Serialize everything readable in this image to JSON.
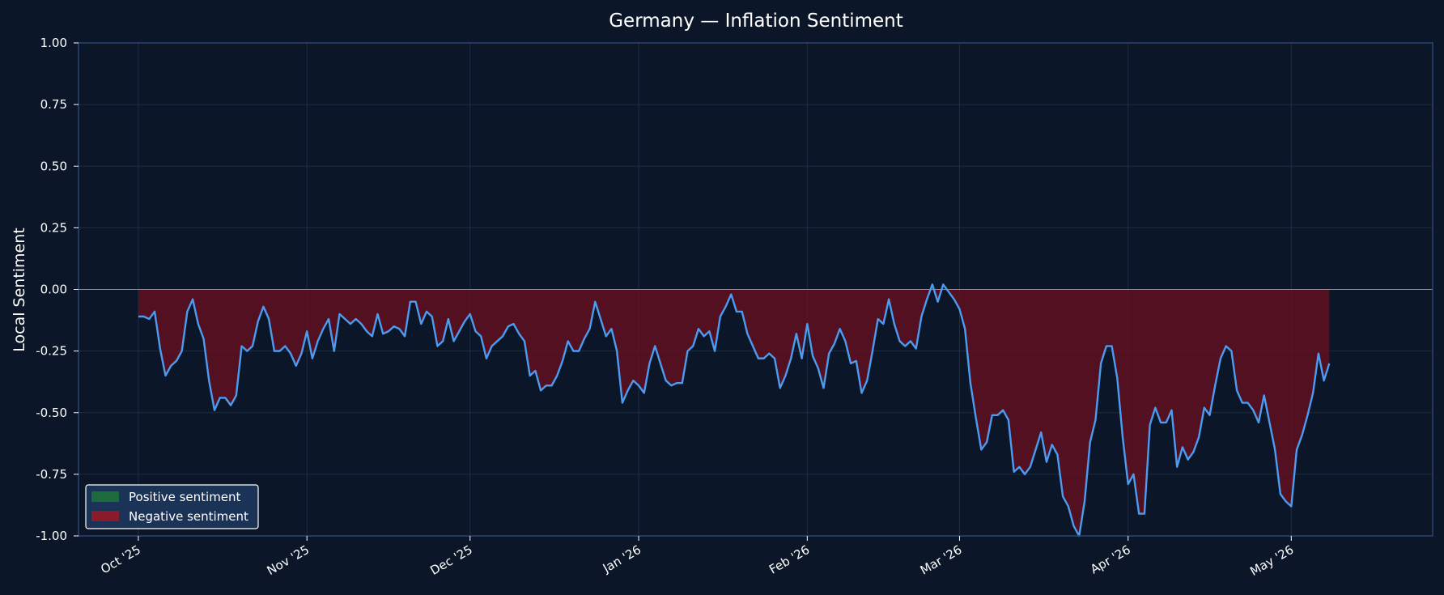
{
  "chart_data": {
    "type": "area",
    "title": "Germany — Inflation Sentiment",
    "xlabel": "",
    "ylabel": "Local Sentiment",
    "x_range": [
      "2025-10-01",
      "2026-05-08"
    ],
    "xlim": [
      "2025-09-20",
      "2026-05-27"
    ],
    "ylim": [
      -1.0,
      1.0
    ],
    "grid": true,
    "legend_position": "lower-left",
    "x_ticks": [
      {
        "date": "2025-10-01",
        "label": "Oct '25"
      },
      {
        "date": "2025-11-01",
        "label": "Nov '25"
      },
      {
        "date": "2025-12-01",
        "label": "Dec '25"
      },
      {
        "date": "2026-01-01",
        "label": "Jan '26"
      },
      {
        "date": "2026-02-01",
        "label": "Feb '26"
      },
      {
        "date": "2026-03-01",
        "label": "Mar '26"
      },
      {
        "date": "2026-04-01",
        "label": "Apr '26"
      },
      {
        "date": "2026-05-01",
        "label": "May '26"
      }
    ],
    "y_ticks": [
      {
        "value": 1.0,
        "label": "1.00"
      },
      {
        "value": 0.75,
        "label": "0.75"
      },
      {
        "value": 0.5,
        "label": "0.50"
      },
      {
        "value": 0.25,
        "label": "0.25"
      },
      {
        "value": 0.0,
        "label": "0.00"
      },
      {
        "value": -0.25,
        "label": "-0.25"
      },
      {
        "value": -0.5,
        "label": "-0.50"
      },
      {
        "value": -0.75,
        "label": "-0.75"
      },
      {
        "value": -1.0,
        "label": "-1.00"
      }
    ],
    "series": [
      {
        "start_date": "2025-10-01",
        "step_days": 1,
        "values": [
          -0.11,
          -0.11,
          -0.12,
          -0.09,
          -0.24,
          -0.35,
          -0.31,
          -0.29,
          -0.25,
          -0.09,
          -0.04,
          -0.14,
          -0.2,
          -0.37,
          -0.49,
          -0.44,
          -0.44,
          -0.47,
          -0.43,
          -0.23,
          -0.25,
          -0.23,
          -0.13,
          -0.07,
          -0.12,
          -0.25,
          -0.25,
          -0.23,
          -0.26,
          -0.31,
          -0.26,
          -0.17,
          -0.28,
          -0.21,
          -0.16,
          -0.12,
          -0.25,
          -0.1,
          -0.12,
          -0.14,
          -0.12,
          -0.14,
          -0.17,
          -0.19,
          -0.1,
          -0.18,
          -0.17,
          -0.15,
          -0.16,
          -0.19,
          -0.05,
          -0.05,
          -0.14,
          -0.09,
          -0.11,
          -0.23,
          -0.21,
          -0.12,
          -0.21,
          -0.17,
          -0.13,
          -0.1,
          -0.17,
          -0.19,
          -0.28,
          -0.23,
          -0.21,
          -0.19,
          -0.15,
          -0.14,
          -0.18,
          -0.21,
          -0.35,
          -0.33,
          -0.41,
          -0.39,
          -0.39,
          -0.35,
          -0.29,
          -0.21,
          -0.25,
          -0.25,
          -0.2,
          -0.16,
          -0.05,
          -0.12,
          -0.19,
          -0.16,
          -0.25,
          -0.46,
          -0.41,
          -0.37,
          -0.39,
          -0.42,
          -0.3,
          -0.23,
          -0.3,
          -0.37,
          -0.39,
          -0.38,
          -0.38,
          -0.25,
          -0.23,
          -0.16,
          -0.19,
          -0.17,
          -0.25,
          -0.11,
          -0.07,
          -0.02,
          -0.09,
          -0.09,
          -0.18,
          -0.23,
          -0.28,
          -0.28,
          -0.26,
          -0.28,
          -0.4,
          -0.35,
          -0.28,
          -0.18,
          -0.28,
          -0.14,
          -0.27,
          -0.32,
          -0.4,
          -0.26,
          -0.22,
          -0.16,
          -0.21,
          -0.3,
          -0.29,
          -0.42,
          -0.37,
          -0.25,
          -0.12,
          -0.14,
          -0.04,
          -0.14,
          -0.21,
          -0.23,
          -0.21,
          -0.24,
          -0.11,
          -0.04,
          0.02,
          -0.05,
          0.02,
          -0.01,
          -0.04,
          -0.08,
          -0.16,
          -0.38,
          -0.52,
          -0.65,
          -0.62,
          -0.51,
          -0.51,
          -0.49,
          -0.53,
          -0.74,
          -0.72,
          -0.75,
          -0.72,
          -0.65,
          -0.58,
          -0.7,
          -0.63,
          -0.67,
          -0.84,
          -0.88,
          -0.96,
          -1.0,
          -0.86,
          -0.62,
          -0.53,
          -0.3,
          -0.23,
          -0.23,
          -0.36,
          -0.6,
          -0.79,
          -0.75,
          -0.91,
          -0.91,
          -0.55,
          -0.48,
          -0.54,
          -0.54,
          -0.49,
          -0.72,
          -0.64,
          -0.69,
          -0.66,
          -0.6,
          -0.48,
          -0.51,
          -0.39,
          -0.28,
          -0.23,
          -0.25,
          -0.41,
          -0.46,
          -0.46,
          -0.49,
          -0.54,
          -0.43,
          -0.54,
          -0.65,
          -0.83,
          -0.86,
          -0.88,
          -0.65,
          -0.59,
          -0.51,
          -0.42,
          -0.26,
          -0.37,
          -0.3
        ]
      }
    ],
    "legend": [
      {
        "label": "Positive sentiment",
        "color": "#1c6b3e"
      },
      {
        "label": "Negative sentiment",
        "color": "#8b1a2b"
      }
    ]
  },
  "colors": {
    "background": "#0b1628",
    "grid": "#1b2d4a",
    "spine": "#2a4673",
    "line": "#4d9bf0",
    "negative_fill": "#6b0f1d",
    "zero_line": "#8a95a8",
    "legend_bg": "#1b3357",
    "text": "#ffffff"
  }
}
